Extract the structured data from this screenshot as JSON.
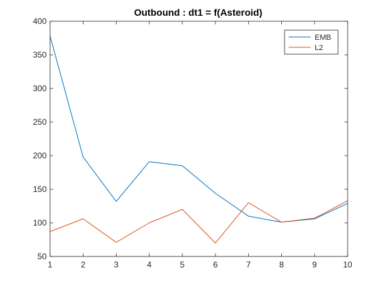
{
  "chart_data": {
    "type": "line",
    "title": "Outbound : dt1 = f(Asteroid)",
    "xlabel": "",
    "ylabel": "",
    "xlim": [
      1,
      10
    ],
    "ylim": [
      50,
      400
    ],
    "xticks": [
      1,
      2,
      3,
      4,
      5,
      6,
      7,
      8,
      9,
      10
    ],
    "yticks": [
      50,
      100,
      150,
      200,
      250,
      300,
      350,
      400
    ],
    "grid": false,
    "legend_position": "top-right",
    "x": [
      1,
      2,
      3,
      4,
      5,
      6,
      7,
      8,
      9,
      10
    ],
    "series": [
      {
        "name": "EMB",
        "color": "#0072BD",
        "values": [
          378,
          198,
          132,
          191,
          185,
          144,
          110,
          101,
          106,
          129
        ]
      },
      {
        "name": "L2",
        "color": "#D95319",
        "values": [
          87,
          106,
          71,
          100,
          120,
          70,
          130,
          101,
          107,
          133
        ]
      }
    ]
  }
}
